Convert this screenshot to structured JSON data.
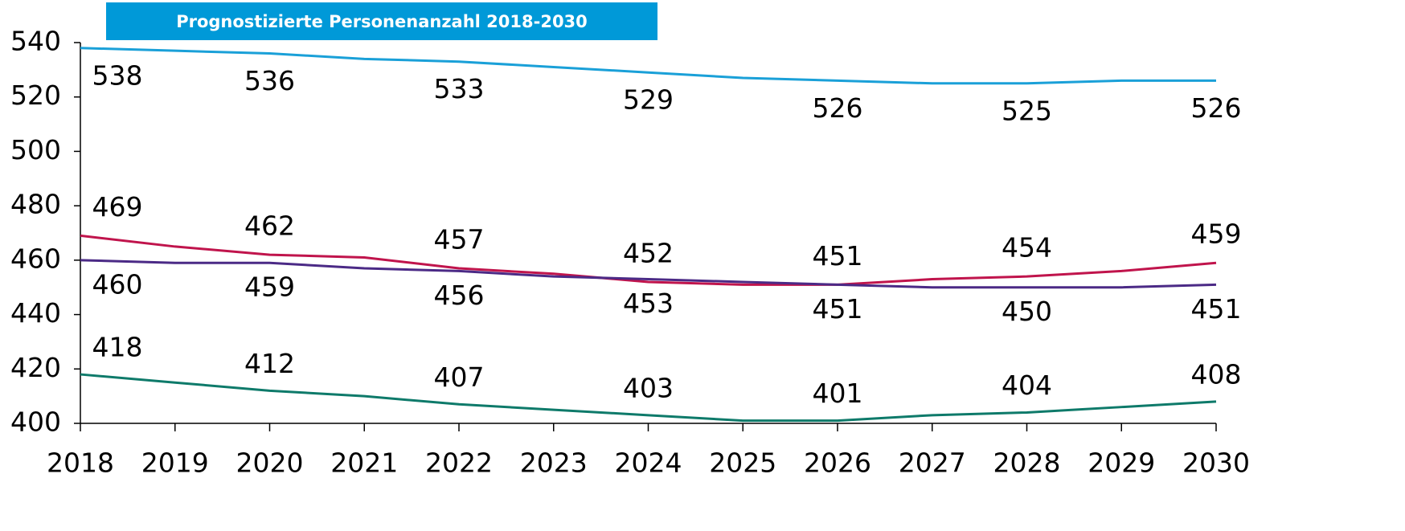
{
  "chart_data": {
    "type": "line",
    "title": "Prognostizierte Personenanzahl 2018-2030",
    "categories": [
      "2018",
      "2019",
      "2020",
      "2021",
      "2022",
      "2023",
      "2024",
      "2025",
      "2026",
      "2027",
      "2028",
      "2029",
      "2030"
    ],
    "ylim": [
      400,
      540
    ],
    "yticks": [
      400,
      420,
      440,
      460,
      480,
      500,
      520,
      540
    ],
    "series": [
      {
        "color": "#1aa0d8",
        "values": [
          538,
          537,
          536,
          534,
          533,
          531,
          529,
          527,
          526,
          525,
          525,
          526,
          526
        ],
        "value_labels": [
          "538",
          null,
          "536",
          null,
          "533",
          null,
          "529",
          null,
          "526",
          null,
          "525",
          null,
          "526"
        ]
      },
      {
        "color": "#c0144c",
        "values": [
          469,
          465,
          462,
          461,
          457,
          455,
          452,
          451,
          451,
          453,
          454,
          456,
          459
        ],
        "value_labels": [
          "469",
          null,
          "462",
          null,
          "457",
          null,
          "452",
          null,
          "451",
          null,
          "454",
          null,
          "459"
        ]
      },
      {
        "color": "#4b2a86",
        "values": [
          460,
          459,
          459,
          457,
          456,
          454,
          453,
          452,
          451,
          450,
          450,
          450,
          451
        ],
        "value_labels": [
          "460",
          null,
          "459",
          null,
          "456",
          null,
          "453",
          null,
          "451",
          null,
          "450",
          null,
          "451"
        ]
      },
      {
        "color": "#0e7a6a",
        "values": [
          418,
          415,
          412,
          410,
          407,
          405,
          403,
          401,
          401,
          403,
          404,
          406,
          408
        ],
        "value_labels": [
          "418",
          null,
          "412",
          null,
          "407",
          null,
          "403",
          null,
          "401",
          null,
          "404",
          null,
          "408"
        ]
      }
    ]
  }
}
